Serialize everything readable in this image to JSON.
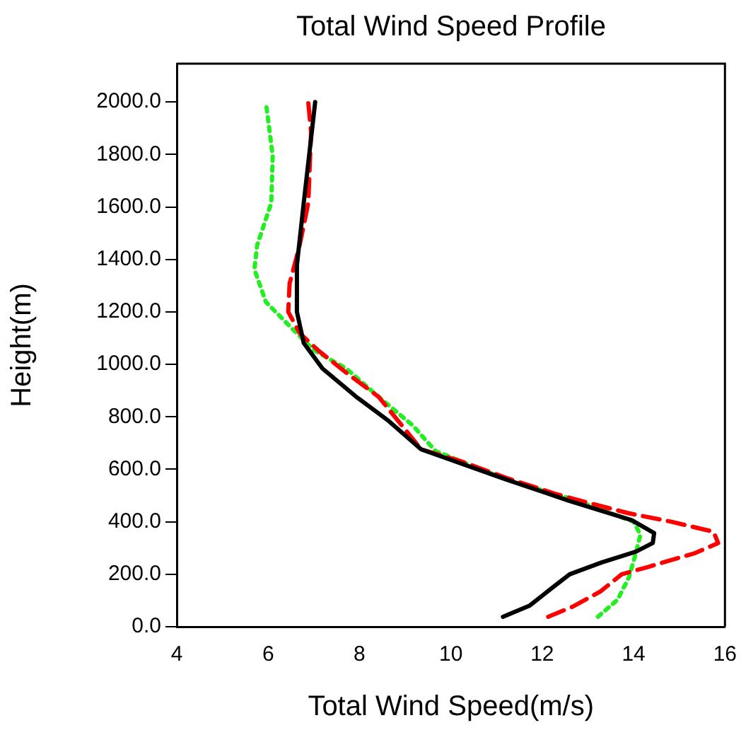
{
  "chart_data": {
    "type": "line",
    "title": "Total Wind Speed Profile",
    "xlabel": "Total Wind Speed(m/s)",
    "ylabel": "Height(m)",
    "xlim": [
      4,
      16
    ],
    "xticks": [
      4,
      6,
      8,
      10,
      12,
      14,
      16
    ],
    "ylim": [
      0,
      2146
    ],
    "yticks": [
      {
        "value": 0,
        "label": "0.0"
      },
      {
        "value": 200,
        "label": "200.0"
      },
      {
        "value": 400,
        "label": "400.0"
      },
      {
        "value": 600,
        "label": "600.0"
      },
      {
        "value": 800,
        "label": "800.0"
      },
      {
        "value": 1000,
        "label": "1000.0"
      },
      {
        "value": 1200,
        "label": "1200.0"
      },
      {
        "value": 1400,
        "label": "1400.0"
      },
      {
        "value": 1600,
        "label": "1600.0"
      },
      {
        "value": 1800,
        "label": "1800.0"
      },
      {
        "value": 2000,
        "label": "2000.0"
      }
    ],
    "grid": false,
    "legend": false,
    "marker": "none",
    "series": [
      {
        "color": "#000000",
        "line_style": "solid",
        "x": [
          11.14,
          11.73,
          12.2,
          12.6,
          13.3,
          14.05,
          14.42,
          14.45,
          13.96,
          12.57,
          11.2,
          9.35,
          8.64,
          7.93,
          7.19,
          6.78,
          6.63,
          6.63,
          6.78,
          7.03
        ],
        "values": [
          38,
          81,
          146,
          200,
          245,
          286,
          319,
          357,
          406,
          481,
          562,
          676,
          784,
          876,
          984,
          1081,
          1200,
          1378,
          1616,
          2000
        ]
      },
      {
        "color": "#ff0000",
        "line_style": "dashed",
        "x": [
          12.13,
          12.66,
          13.28,
          13.74,
          14.3,
          15.35,
          15.85,
          15.75,
          14.83,
          13.9,
          13.06,
          12.26,
          11.2,
          10.2,
          9.35,
          8.42,
          7.71,
          7.09,
          6.69,
          6.44,
          6.47,
          6.69,
          6.88,
          6.94,
          6.88
        ],
        "values": [
          38,
          76,
          135,
          200,
          227,
          281,
          319,
          362,
          400,
          432,
          470,
          508,
          568,
          632,
          676,
          876,
          968,
          1054,
          1119,
          1200,
          1308,
          1454,
          1616,
          1886,
          1995
        ]
      },
      {
        "color": "#22ee22",
        "line_style": "dotted",
        "x": [
          13.22,
          13.65,
          13.9,
          14.05,
          14.15,
          14.0,
          12.75,
          11.2,
          9.66,
          9.16,
          8.42,
          7.71,
          7.0,
          6.47,
          5.95,
          5.7,
          5.76,
          6.07,
          6.1,
          5.95
        ],
        "values": [
          38,
          103,
          189,
          281,
          351,
          400,
          481,
          562,
          670,
          768,
          876,
          984,
          1054,
          1146,
          1238,
          1362,
          1454,
          1616,
          1795,
          2000
        ]
      }
    ]
  }
}
